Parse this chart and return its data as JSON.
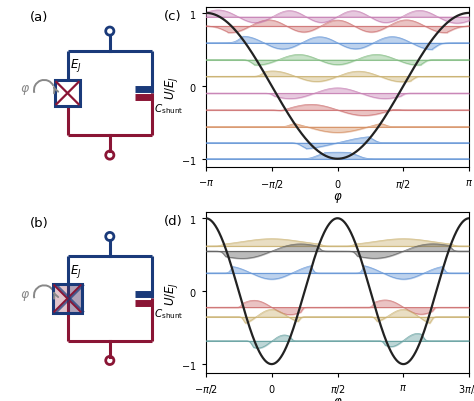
{
  "circuit": {
    "blue": "#1a3a7a",
    "crimson": "#8a1535",
    "gray": "#888888",
    "lw_circuit": 2.2,
    "lw_cap": 5.0
  },
  "panel_c": {
    "n_levels": 10,
    "level_values": [
      -1.0,
      -0.78,
      -0.56,
      -0.33,
      -0.1,
      0.13,
      0.36,
      0.59,
      0.82,
      0.95
    ],
    "colors": [
      "#5b8fd4",
      "#5b8fd4",
      "#d48a5b",
      "#cc6b6b",
      "#c47ab0",
      "#c8ae6a",
      "#7ab87a",
      "#5b8fd4",
      "#cc6b6b",
      "#c47ab0"
    ],
    "ylim": [
      -1.12,
      1.08
    ],
    "wf_amp": 0.09
  },
  "panel_d": {
    "n_levels": 6,
    "level_values": [
      0.62,
      0.55,
      0.25,
      -0.22,
      -0.35,
      -0.68
    ],
    "colors": [
      "#c8ae6a",
      "#555555",
      "#5b8fd4",
      "#cc6b6b",
      "#c8ae6a",
      "#5b9a9a"
    ],
    "ylim": [
      -1.12,
      1.08
    ],
    "wf_amp": 0.1
  }
}
